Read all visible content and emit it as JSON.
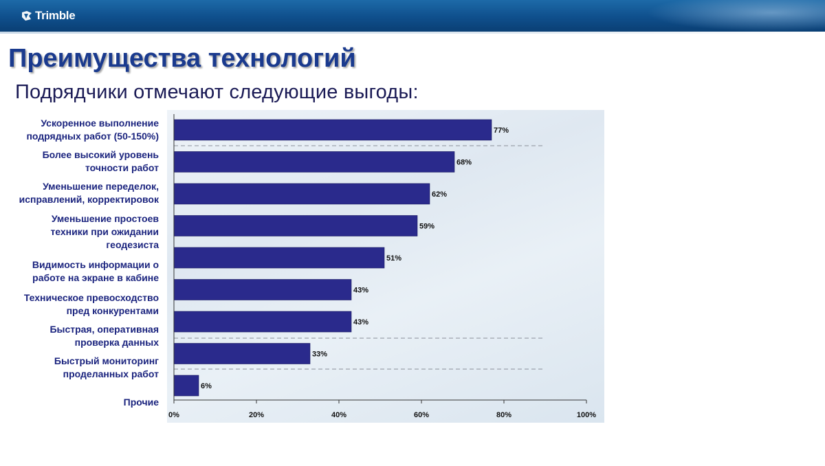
{
  "header": {
    "logo_text": "Trimble",
    "title": "Преимущества технологий",
    "subtitle": "Подрядчики отмечают следующие выгоды:"
  },
  "chart_data": {
    "type": "bar",
    "orientation": "horizontal",
    "categories": [
      "Ускоренное выполнение\nподрядных работ (50-150%)",
      "Более высокий уровень\nточности работ",
      "Уменьшение переделок,\nисправлений, корректировок",
      "Уменьшение простоев\nтехники при ожидании\nгеодезиста",
      "Видимость информации о\nработе на экране в кабине",
      "Техническое превосходство\nпред конкурентами",
      "Быстрая, оперативная\nпроверка данных",
      "Быстрый мониторинг\nпроделанных работ",
      "Прочие"
    ],
    "values": [
      77,
      68,
      62,
      59,
      51,
      43,
      43,
      33,
      6
    ],
    "value_labels": [
      "77%",
      "68%",
      "62%",
      "59%",
      "51%",
      "43%",
      "43%",
      "33%",
      "6%"
    ],
    "xlim": [
      0,
      100
    ],
    "x_ticks": [
      "0%",
      "20%",
      "40%",
      "60%",
      "80%",
      "100%"
    ],
    "bar_color": "#2a2a8c",
    "label_color": "#1a237e",
    "grid": false
  }
}
